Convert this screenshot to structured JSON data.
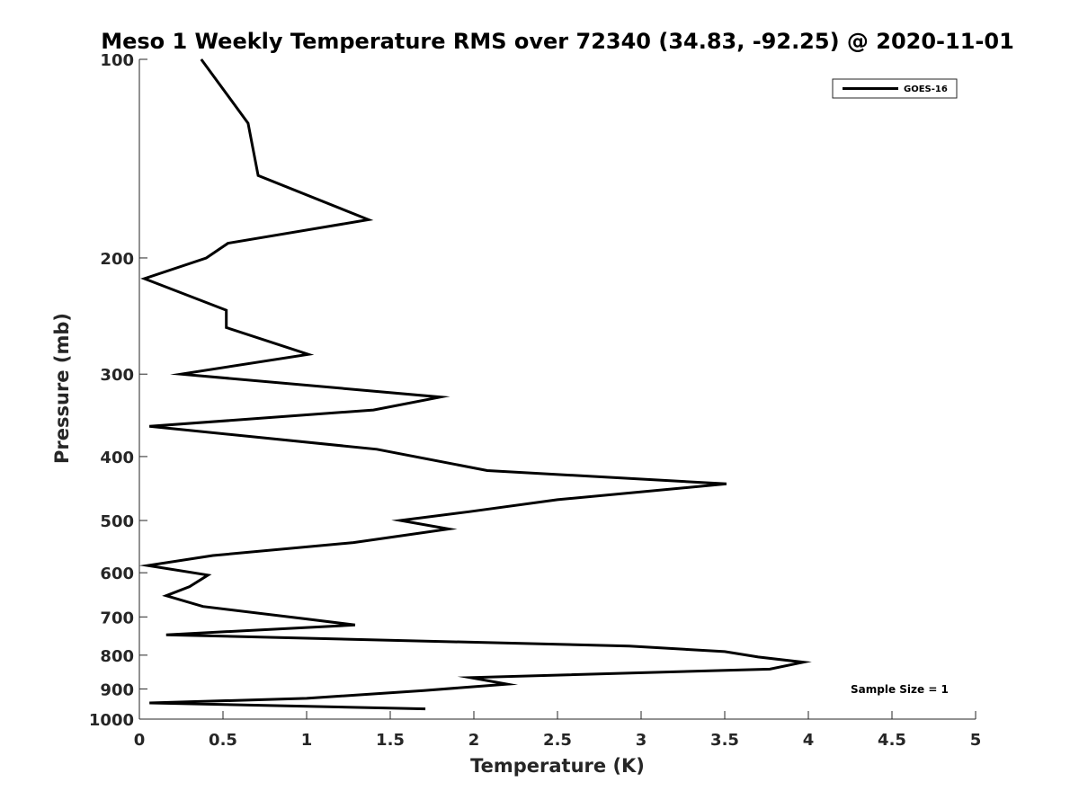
{
  "chart_data": {
    "type": "line",
    "title": "Meso 1 Weekly Temperature RMS over 72340 (34.83, -92.25) @ 2020-11-01",
    "xlabel": "Temperature (K)",
    "ylabel": "Pressure (mb)",
    "xlim": [
      0,
      5
    ],
    "ylim": [
      100,
      1000
    ],
    "y_scale": "log",
    "y_reversed": true,
    "x_ticks": [
      "0",
      "0.5",
      "1",
      "1.5",
      "2",
      "2.5",
      "3",
      "3.5",
      "4",
      "4.5",
      "5"
    ],
    "y_ticks": [
      "100",
      "200",
      "300",
      "400",
      "500",
      "600",
      "700",
      "800",
      "900",
      "1000"
    ],
    "grid": false,
    "legend_position": "top-right",
    "line_color": "#000000",
    "annotation": "Sample Size = 1",
    "series": [
      {
        "name": "GOES-16",
        "x": [
          0.37,
          0.65,
          0.71,
          1.37,
          0.53,
          0.4,
          0.03,
          0.52,
          0.52,
          1.01,
          0.25,
          1.8,
          1.4,
          0.06,
          1.42,
          2.08,
          3.51,
          2.5,
          1.97,
          1.56,
          1.85,
          1.28,
          0.44,
          0.05,
          0.41,
          0.3,
          0.16,
          0.38,
          1.0,
          1.29,
          0.16,
          2.93,
          3.5,
          3.7,
          3.97,
          3.77,
          1.98,
          2.2,
          1.7,
          1.0,
          0.06,
          1.71
        ],
        "y": [
          100,
          125,
          150,
          175,
          190,
          200,
          215,
          240,
          255,
          280,
          300,
          325,
          340,
          360,
          390,
          420,
          440,
          465,
          485,
          500,
          515,
          540,
          565,
          585,
          605,
          630,
          650,
          675,
          705,
          720,
          745,
          775,
          790,
          805,
          820,
          840,
          865,
          885,
          905,
          930,
          945,
          965
        ]
      }
    ]
  }
}
